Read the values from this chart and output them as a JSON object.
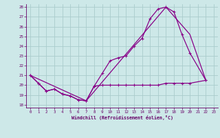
{
  "xlabel": "Windchill (Refroidissement éolien,°C)",
  "xlim": [
    0,
    23
  ],
  "ylim": [
    18,
    28
  ],
  "xticks": [
    0,
    1,
    2,
    3,
    4,
    5,
    6,
    7,
    8,
    9,
    10,
    11,
    12,
    13,
    14,
    15,
    16,
    17,
    18,
    19,
    20,
    21,
    22,
    23
  ],
  "yticks": [
    18,
    19,
    20,
    21,
    22,
    23,
    24,
    25,
    26,
    27,
    28
  ],
  "bg_color": "#cde8e8",
  "line_color": "#880088",
  "grid_color": "#aacccc",
  "curve1_x": [
    0,
    1,
    2,
    3,
    4,
    5,
    6,
    7,
    8,
    9,
    10,
    11,
    12,
    13,
    14,
    15,
    16,
    17,
    18,
    19,
    20,
    22
  ],
  "curve1_y": [
    21.0,
    20.2,
    19.4,
    19.6,
    19.1,
    18.9,
    18.5,
    18.4,
    19.9,
    21.2,
    22.5,
    22.8,
    23.0,
    24.0,
    24.8,
    26.8,
    27.8,
    28.0,
    27.5,
    25.2,
    23.3,
    20.5
  ],
  "curve2_x": [
    0,
    1,
    2,
    3,
    4,
    5,
    6,
    7,
    8,
    9,
    10,
    11,
    12,
    13,
    14,
    15,
    16,
    17,
    18,
    19,
    20,
    22
  ],
  "curve2_y": [
    21.0,
    20.2,
    19.4,
    19.6,
    19.1,
    18.9,
    18.5,
    18.4,
    19.9,
    20.0,
    20.0,
    20.0,
    20.0,
    20.0,
    20.0,
    20.0,
    20.0,
    20.2,
    20.2,
    20.2,
    20.2,
    20.5
  ],
  "line3_x": [
    0,
    7,
    17,
    20,
    22
  ],
  "line3_y": [
    21.0,
    18.4,
    28.0,
    25.2,
    20.5
  ],
  "figsize": [
    3.2,
    2.0
  ],
  "dpi": 100
}
